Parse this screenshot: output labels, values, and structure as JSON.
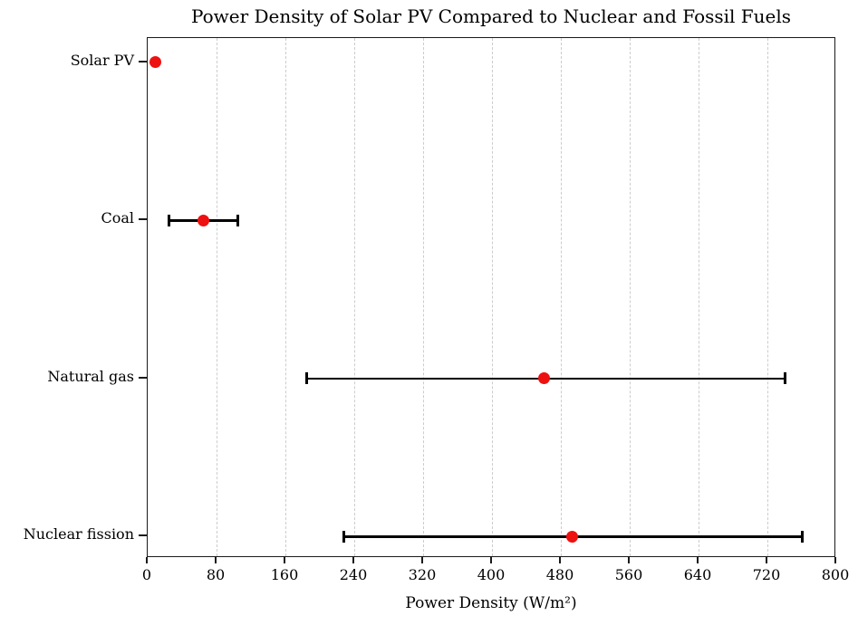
{
  "chart_data": {
    "type": "scatter",
    "subtype": "horizontal-dot-with-errorbars",
    "title": "Power Density of Solar PV Compared to Nuclear and Fossil Fuels",
    "xlabel": "Power Density (W/m²)",
    "categories": [
      "Solar PV",
      "Coal",
      "Natural gas",
      "Nuclear fission"
    ],
    "points": [
      {
        "category": "Solar PV",
        "value": 9,
        "low": null,
        "high": null
      },
      {
        "category": "Coal",
        "value": 65,
        "low": 25,
        "high": 105
      },
      {
        "category": "Natural gas",
        "value": 460,
        "low": 185,
        "high": 740
      },
      {
        "category": "Nuclear fission",
        "value": 493,
        "low": 228,
        "high": 760
      }
    ],
    "xlim": [
      0,
      800
    ],
    "xticks": [
      0,
      80,
      160,
      240,
      320,
      400,
      480,
      560,
      640,
      720,
      800
    ],
    "grid": {
      "vertical": true,
      "style": "dashed",
      "color": "#cccccc"
    },
    "legend": null,
    "marker_color": "#ee1111",
    "errorbar_color": "#000000",
    "background_color": "#ffffff"
  }
}
